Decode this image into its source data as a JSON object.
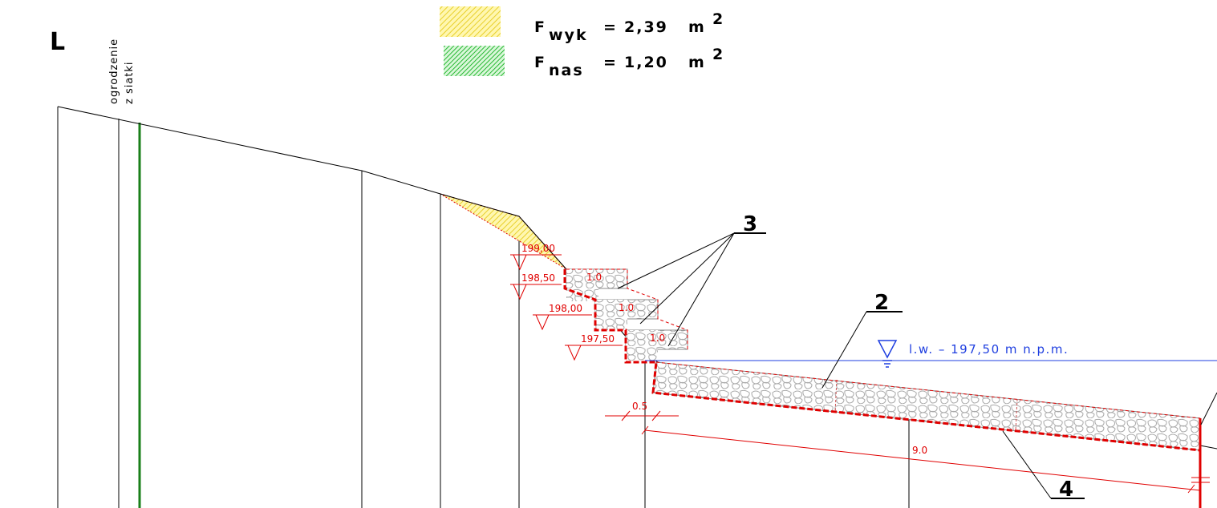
{
  "section_letter": "L",
  "fence_label": {
    "line1": "ogrodzenie",
    "line2": "z siatki"
  },
  "legend": {
    "excavation": {
      "symbol": "F",
      "subscript": "wyk",
      "equals": "=",
      "value": "2,39",
      "unit": "m",
      "exponent": "2",
      "color": "#f5e04a"
    },
    "embankment": {
      "symbol": "F",
      "subscript": "nas",
      "equals": "=",
      "value": "1,20",
      "unit": "m",
      "exponent": "2",
      "color": "#2fc43a"
    }
  },
  "elevation_marks": [
    "199,00",
    "198,50",
    "198,00",
    "197,50"
  ],
  "step_labels": [
    "1.0",
    "1.0",
    "1.0"
  ],
  "water_level": "l.w. – 197,50 m n.p.m.",
  "dimensions": {
    "offset": "0.5",
    "length": "9.0"
  },
  "callouts": {
    "steps": "3",
    "revetment": "2",
    "toe": "4"
  },
  "colors": {
    "fence": "#1a7f1a",
    "design": "#e00000",
    "water": "#1f3fe0",
    "stone": "#b8b8b8"
  }
}
